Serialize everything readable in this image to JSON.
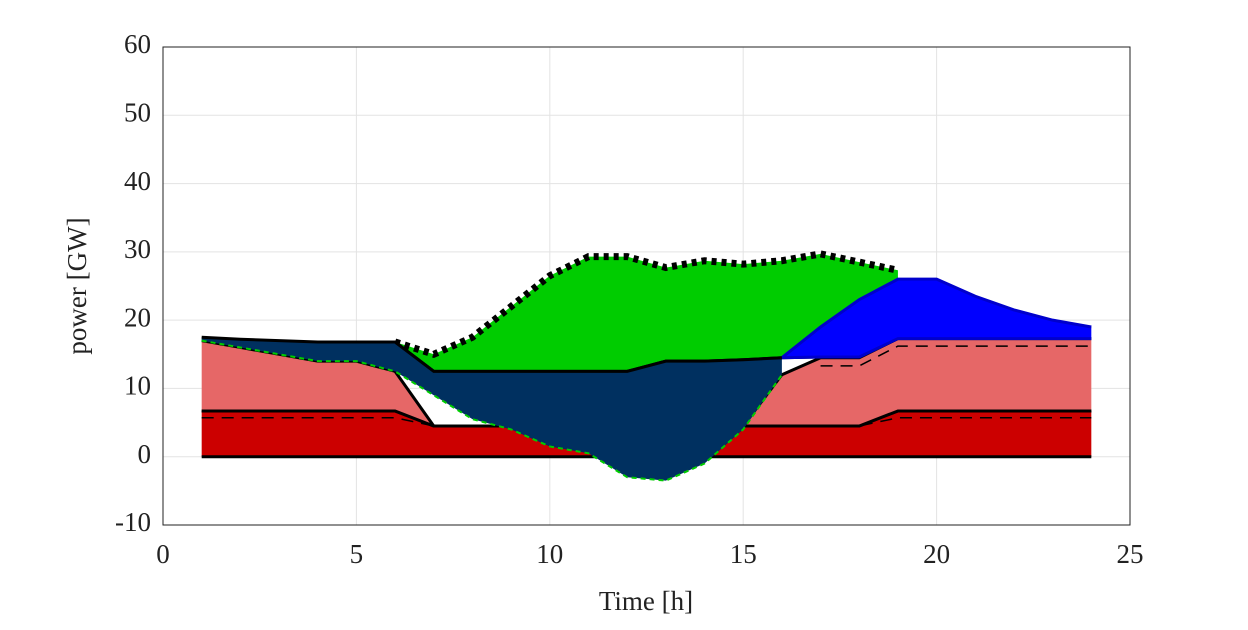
{
  "chart_data": {
    "type": "area",
    "xlabel": "Time [h]",
    "ylabel": "power [GW]",
    "x": [
      1,
      2,
      3,
      4,
      5,
      6,
      7,
      8,
      9,
      10,
      11,
      12,
      13,
      14,
      15,
      16,
      17,
      18,
      19,
      20,
      21,
      22,
      23,
      24
    ],
    "xlim": [
      0,
      25
    ],
    "xticks": [
      0,
      5,
      10,
      15,
      20,
      25
    ],
    "ylim": [
      -10,
      60
    ],
    "yticks": [
      -10,
      0,
      10,
      20,
      30,
      40,
      50,
      60
    ],
    "grid": true,
    "series": [
      {
        "kind": "band",
        "color": "#cc0000",
        "edge_color": "#000000",
        "lower": [
          0,
          0,
          0,
          0,
          0,
          0,
          0,
          0,
          0,
          0,
          0,
          0,
          0,
          0,
          0,
          0,
          0,
          0,
          0,
          0,
          0,
          0,
          0,
          0
        ],
        "values": [
          6.7,
          6.7,
          6.7,
          6.7,
          6.7,
          6.7,
          4.5,
          4.5,
          4.5,
          4.5,
          4.5,
          4.5,
          4.5,
          4.5,
          4.5,
          4.5,
          4.5,
          4.5,
          6.7,
          6.7,
          6.7,
          6.7,
          6.7,
          6.7
        ]
      },
      {
        "kind": "band",
        "color": "#e66767",
        "edge_color": "#000000",
        "lower": [
          6.7,
          6.7,
          6.7,
          6.7,
          6.7,
          6.7,
          4.5,
          4.5,
          4.5,
          4.5,
          4.5,
          4.5,
          4.5,
          4.5,
          4.5,
          4.5,
          4.5,
          4.5,
          6.7,
          6.7,
          6.7,
          6.7,
          6.7,
          6.7
        ],
        "values": [
          17,
          16,
          15,
          14,
          14,
          12.5,
          4.5,
          4.5,
          4.5,
          4.5,
          4.5,
          4.5,
          4.5,
          4.5,
          4.5,
          12,
          14.5,
          14.5,
          17.3,
          17.3,
          17.3,
          17.3,
          17.3,
          17.3
        ]
      },
      {
        "kind": "line",
        "color": "#000000",
        "dash": "12,8",
        "values": [
          5.7,
          5.7,
          5.7,
          5.7,
          5.7,
          5.7,
          4.5,
          4.5,
          4.5,
          4.5,
          4.5,
          4.5,
          4.5,
          4.5,
          4.5,
          4.5,
          4.5,
          4.5,
          5.7,
          5.7,
          5.7,
          5.7,
          5.7,
          5.7
        ]
      },
      {
        "kind": "line",
        "color": "#000000",
        "dash": "12,8",
        "values": [
          null,
          null,
          null,
          null,
          null,
          null,
          null,
          null,
          null,
          null,
          null,
          null,
          null,
          null,
          null,
          null,
          13.3,
          13.3,
          16.2,
          16.2,
          16.2,
          16.2,
          16.2,
          16.2
        ]
      },
      {
        "kind": "band",
        "color": "#00cc00",
        "edge_color": "#000000",
        "edge_dash": "5,5",
        "lower": [
          null,
          null,
          null,
          null,
          null,
          16.8,
          12.5,
          12.5,
          12.5,
          12.5,
          12.5,
          12.5,
          14,
          14,
          14.2,
          14.5,
          14.6,
          14.6,
          17.3,
          null,
          null,
          null,
          null,
          null
        ],
        "values": [
          null,
          null,
          null,
          null,
          null,
          16.8,
          15,
          17.5,
          22,
          26.5,
          29.3,
          29.3,
          27.7,
          28.7,
          28.2,
          28.7,
          29.7,
          28.5,
          27.3,
          null,
          null,
          null,
          null,
          null
        ]
      },
      {
        "kind": "band",
        "color": "#0000ff",
        "edge_color": "#0000cc",
        "lower": [
          null,
          null,
          null,
          null,
          null,
          null,
          null,
          null,
          null,
          null,
          null,
          null,
          null,
          null,
          null,
          14.5,
          14.6,
          14.6,
          17.3,
          17.3,
          17.3,
          17.3,
          17.3,
          17.3
        ],
        "values": [
          null,
          null,
          null,
          null,
          null,
          null,
          null,
          null,
          null,
          null,
          null,
          null,
          null,
          null,
          null,
          14.5,
          19,
          23,
          26,
          26,
          23.5,
          21.5,
          20,
          19
        ]
      },
      {
        "kind": "band",
        "color": "#003060",
        "edge_color": "#000000",
        "lower_edge_color": "#00cc00",
        "lower": [
          17,
          16,
          15,
          14,
          14,
          12.5,
          9,
          5.5,
          4,
          1.5,
          0.5,
          -3,
          -3.5,
          -1,
          4,
          12,
          null,
          null,
          null,
          null,
          null,
          null,
          null,
          null
        ],
        "values": [
          17.5,
          17.2,
          17,
          16.8,
          16.8,
          16.8,
          12.5,
          12.5,
          12.5,
          12.5,
          12.5,
          12.5,
          14,
          14,
          14.2,
          14.5,
          null,
          null,
          null,
          null,
          null,
          null,
          null,
          null
        ]
      }
    ]
  }
}
